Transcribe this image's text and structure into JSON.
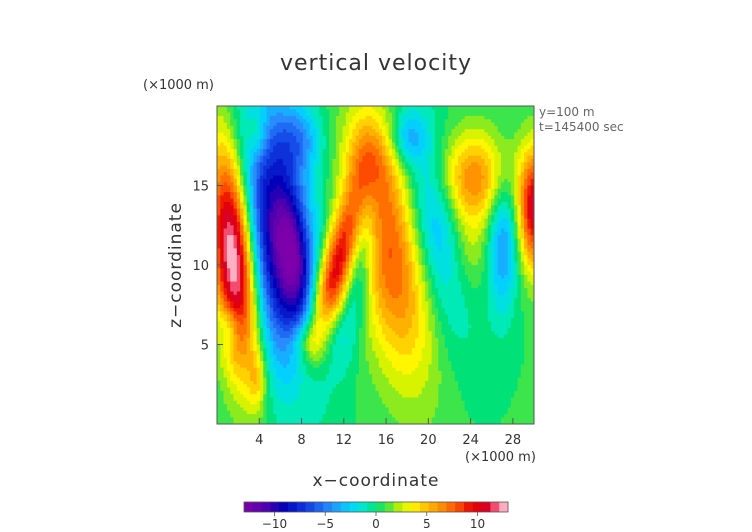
{
  "chart_data": {
    "type": "heatmap",
    "title": "vertical velocity",
    "xlabel": "x−coordinate",
    "ylabel": "z−coordinate",
    "x_unit": "(×1000 m)",
    "y_unit": "(×1000 m)",
    "annotations": [
      "y=100 m",
      "t=145400 sec"
    ],
    "xlim": [
      0,
      30
    ],
    "ylim": [
      0,
      20
    ],
    "x_ticks": [
      4,
      8,
      12,
      16,
      20,
      24,
      28
    ],
    "y_ticks": [
      5,
      10,
      15
    ],
    "x_tick_labels": [
      "4",
      "8",
      "12",
      "16",
      "20",
      "24",
      "28"
    ],
    "y_tick_labels": [
      "5",
      "10",
      "15"
    ],
    "colorbar": {
      "range": [
        -13,
        13
      ],
      "ticks": [
        -10,
        -5,
        0,
        5,
        10
      ],
      "tick_labels": [
        "−10",
        "−5",
        "0",
        "5",
        "10"
      ]
    },
    "background_value": 0.5,
    "features": [
      {
        "x": 1.6,
        "z": 10.5,
        "amp": 14,
        "sx": 1.4,
        "sz": 4.8,
        "tilt": -0.12
      },
      {
        "x": 5.8,
        "z": 11.5,
        "amp": -11,
        "sx": 2.3,
        "sz": 5.8,
        "tilt": -0.15
      },
      {
        "x": 7.2,
        "z": 10.5,
        "amp": -5,
        "sx": 1.0,
        "sz": 2.5,
        "tilt": -0.15
      },
      {
        "x": 11.2,
        "z": 9.5,
        "amp": 10,
        "sx": 1.2,
        "sz": 3.5,
        "tilt": 0.38
      },
      {
        "x": 16.5,
        "z": 11.0,
        "amp": 7.5,
        "sx": 2.4,
        "sz": 5.5,
        "tilt": -0.2
      },
      {
        "x": 13.6,
        "z": 11.0,
        "amp": -4.5,
        "sx": 1.0,
        "sz": 4.0,
        "tilt": 0.2
      },
      {
        "x": 20.8,
        "z": 12.5,
        "amp": -5.5,
        "sx": 2.0,
        "sz": 4.5,
        "tilt": -0.25
      },
      {
        "x": 24.2,
        "z": 15.5,
        "amp": 6,
        "sx": 2.6,
        "sz": 2.0,
        "tilt": 0
      },
      {
        "x": 23.5,
        "z": 11.0,
        "amp": 3,
        "sx": 1.6,
        "sz": 2.5,
        "tilt": 0
      },
      {
        "x": 27.0,
        "z": 11.5,
        "amp": -5,
        "sx": 1.0,
        "sz": 3.2,
        "tilt": 0
      },
      {
        "x": 30.0,
        "z": 13.5,
        "amp": 10,
        "sx": 1.0,
        "sz": 2.6,
        "tilt": 0
      },
      {
        "x": 9.0,
        "z": 5.2,
        "amp": 3.5,
        "sx": 1.5,
        "sz": 1.0,
        "tilt": 0
      },
      {
        "x": 10.5,
        "z": 5.5,
        "amp": -3,
        "sx": 1.2,
        "sz": 1.2,
        "tilt": 0
      },
      {
        "x": 3.8,
        "z": 2.8,
        "amp": 3,
        "sx": 0.6,
        "sz": 1.4,
        "tilt": 0
      },
      {
        "x": 3.8,
        "z": 18.3,
        "amp": 2.8,
        "sx": 0.7,
        "sz": 1.2,
        "tilt": 0
      },
      {
        "x": 7.8,
        "z": 18.0,
        "amp": -3.5,
        "sx": 1.5,
        "sz": 1.5,
        "tilt": 0
      },
      {
        "x": 18.0,
        "z": 18.0,
        "amp": -3.5,
        "sx": 1.2,
        "sz": 1.2,
        "tilt": 0
      },
      {
        "x": 14.5,
        "z": 16.5,
        "amp": 4,
        "sx": 1.5,
        "sz": 2.0,
        "tilt": 0
      },
      {
        "x": 1.2,
        "z": 6.2,
        "amp": -3,
        "sx": 0.7,
        "sz": 1.0,
        "tilt": 0
      }
    ]
  }
}
